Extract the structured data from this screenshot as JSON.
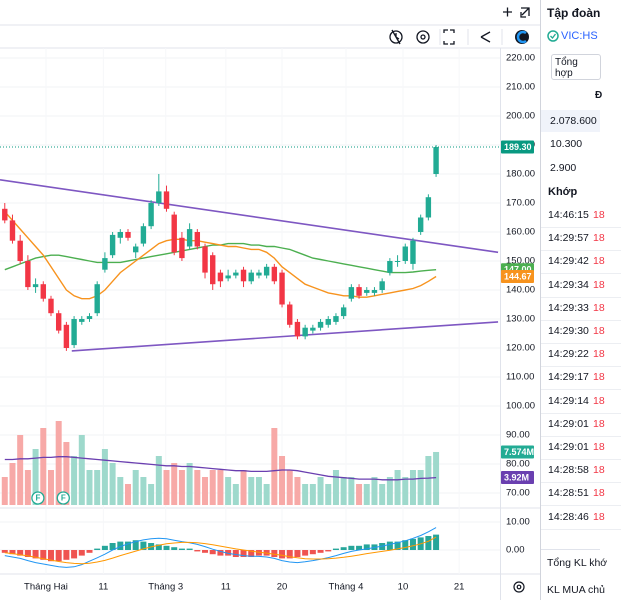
{
  "chart_data": {
    "type": "candlestick",
    "xlim": [
      -0.62,
      64.3
    ],
    "xticks": [
      {
        "value": 5.35,
        "label": "Tháng Hai"
      },
      {
        "value": 12.8,
        "label": "11"
      },
      {
        "value": 20.9,
        "label": "Tháng 3"
      },
      {
        "value": 28.7,
        "label": "11"
      },
      {
        "value": 36,
        "label": "20"
      },
      {
        "value": 44.3,
        "label": "Tháng 4"
      },
      {
        "value": 51.7,
        "label": "10"
      },
      {
        "value": 59,
        "label": "21"
      }
    ],
    "ylim": [
      65.86,
      223.45
    ],
    "yticks": [
      {
        "value": 220,
        "label": "220.00"
      },
      {
        "value": 210,
        "label": "210.00"
      },
      {
        "value": 200,
        "label": "200.00"
      },
      {
        "value": 190,
        "label": "190.00"
      },
      {
        "value": 180,
        "label": "180.00"
      },
      {
        "value": 170,
        "label": "170.00"
      },
      {
        "value": 160,
        "label": "160.00"
      },
      {
        "value": 150,
        "label": "150.00"
      },
      {
        "value": 140,
        "label": "140.00"
      },
      {
        "value": 130,
        "label": "130.00"
      },
      {
        "value": 120,
        "label": "120.00"
      },
      {
        "value": 110,
        "label": "110.00"
      },
      {
        "value": 100,
        "label": "100.00"
      },
      {
        "value": 90,
        "label": "90.00"
      },
      {
        "value": 80,
        "label": "80.00"
      },
      {
        "value": 70,
        "label": "70.00"
      }
    ],
    "grid": true,
    "up_color": "#22ab94",
    "down_color": "#f23645",
    "open": [
      168,
      164,
      157,
      150,
      141,
      142,
      137,
      132,
      128,
      121,
      129,
      130,
      132,
      147,
      152,
      158,
      160,
      153,
      156,
      162,
      170,
      174,
      166,
      158,
      155,
      160,
      155,
      152,
      146,
      144,
      145,
      147,
      143,
      145,
      145,
      148,
      146,
      135,
      129,
      124,
      126,
      127,
      128,
      129,
      131,
      137,
      141,
      139,
      139,
      140,
      146,
      150,
      150,
      149,
      160,
      165,
      180
    ],
    "high": [
      170,
      166,
      159,
      152,
      144,
      143,
      138,
      133,
      129,
      131,
      131,
      132,
      143,
      153,
      160,
      161,
      161,
      156,
      163,
      171,
      180,
      176,
      167,
      160,
      163,
      161,
      156,
      153,
      147,
      147,
      147,
      148,
      147,
      147,
      149,
      149,
      147,
      136,
      130,
      128,
      128,
      130,
      131,
      132,
      135,
      142,
      142,
      141,
      141,
      144,
      151,
      152,
      156,
      158,
      166,
      173,
      190
    ],
    "low": [
      163,
      156,
      149,
      140,
      139,
      136,
      131,
      125,
      119,
      120,
      128,
      129,
      131,
      146,
      151,
      156,
      157,
      151,
      155,
      161,
      169,
      167,
      152,
      150,
      154,
      154,
      144,
      140,
      141,
      143,
      144,
      141,
      142,
      144,
      144,
      142,
      134,
      127,
      123,
      123,
      125,
      126,
      127,
      128,
      130,
      136,
      137,
      138,
      138,
      139,
      145,
      148,
      149,
      147,
      159,
      164,
      179
    ],
    "close": [
      164,
      157,
      150,
      141,
      142,
      137,
      132,
      126,
      120,
      130,
      130,
      131,
      142,
      151,
      159,
      160,
      158,
      155,
      162,
      170,
      174,
      168,
      153,
      151,
      161,
      155,
      146,
      142,
      143,
      145,
      146,
      143,
      146,
      146,
      148,
      143,
      135,
      128,
      124,
      127,
      127,
      129,
      130,
      131,
      134,
      141,
      138,
      140,
      140,
      143,
      150,
      150,
      155,
      157,
      165,
      172,
      189.3
    ],
    "lines": [
      {
        "color": "#4caf50",
        "values": [
          147,
          148,
          149,
          150,
          151,
          151.5,
          152,
          152,
          151.5,
          151,
          150.5,
          150,
          149.5,
          149.5,
          149.5,
          149.5,
          150,
          150.5,
          151,
          151.5,
          152,
          152.5,
          153,
          153.5,
          154,
          154.5,
          155,
          155.5,
          155.5,
          156,
          156,
          156,
          155.5,
          155.5,
          155,
          155,
          154.5,
          154,
          153,
          152,
          151,
          150.5,
          150,
          149.5,
          149,
          148.5,
          148,
          147.5,
          147,
          146.5,
          146,
          146,
          146,
          146.2,
          146.5,
          146.8,
          147
        ]
      },
      {
        "color": "#f7931e",
        "values": [
          167,
          164,
          161,
          158,
          155,
          152,
          148,
          144,
          140,
          138,
          137,
          137,
          138,
          140,
          143,
          146,
          148,
          150,
          152,
          154,
          156,
          157,
          157.5,
          157.5,
          157,
          157,
          156.5,
          156,
          155.5,
          155,
          155,
          154.5,
          154,
          154,
          153,
          151,
          148,
          146,
          144,
          142,
          141,
          140,
          139,
          138.5,
          138,
          138,
          137.5,
          137.5,
          138,
          138.5,
          139,
          139.5,
          140,
          140.5,
          141.5,
          143,
          144.67
        ]
      }
    ],
    "trendlines": [
      {
        "color": "#7e57c2",
        "x": [
          -0.62,
          64.05
        ],
        "y": [
          178,
          153
        ]
      },
      {
        "color": "#7e57c2",
        "x": [
          8.7,
          64.05
        ],
        "y": [
          119,
          129
        ]
      }
    ],
    "events": [
      {
        "x": 4.3,
        "label": "F"
      },
      {
        "x": 7.6,
        "label": "F"
      }
    ],
    "volume": {
      "ylim": [
        0,
        10
      ],
      "up_color": "#9ed9cc",
      "down_color": "#f7a9a7",
      "values": [
        4,
        6,
        10,
        5,
        8,
        11,
        5,
        12,
        9,
        7,
        10,
        5,
        5,
        8,
        6,
        4,
        3,
        5,
        4,
        3,
        7,
        5,
        6,
        5,
        6,
        5,
        4,
        5,
        5,
        4,
        3,
        5,
        4,
        4,
        3,
        11,
        7,
        5,
        4,
        3,
        3,
        4,
        3,
        5,
        4,
        4,
        3,
        3,
        4,
        3,
        4,
        5,
        4,
        5,
        5,
        7,
        7.574
      ],
      "ma": {
        "color": "#6a3fb0",
        "values": [
          6.5,
          6.5,
          6.6,
          6.6,
          6.7,
          6.8,
          6.8,
          6.9,
          6.9,
          6.8,
          6.7,
          6.6,
          6.5,
          6.4,
          6.3,
          6.2,
          6.1,
          6,
          5.9,
          5.8,
          5.7,
          5.6,
          5.6,
          5.5,
          5.5,
          5.4,
          5.3,
          5.2,
          5.1,
          5,
          4.9,
          4.9,
          4.8,
          4.8,
          4.8,
          4.9,
          5,
          5,
          4.9,
          4.7,
          4.5,
          4.3,
          4.1,
          4,
          3.9,
          3.8,
          3.7,
          3.7,
          3.7,
          3.6,
          3.6,
          3.6,
          3.7,
          3.7,
          3.8,
          3.85,
          3.92
        ]
      }
    },
    "badges": [
      {
        "pane": "price",
        "value": 189.3,
        "label": "189.30",
        "color": "#089981"
      },
      {
        "pane": "price",
        "value": 147,
        "label": "147.00",
        "color": "#4caf50"
      },
      {
        "pane": "price",
        "value": 144.67,
        "label": "144.67",
        "color": "#f7931e"
      },
      {
        "pane": "volume",
        "value": 7.574,
        "label": "7.574M",
        "color": "#22ab94"
      },
      {
        "pane": "volume",
        "value": 3.92,
        "label": "3.92M",
        "color": "#6a3fb0"
      }
    ],
    "macd": {
      "ylim": [
        -7.14,
        14.29
      ],
      "yticks": [
        {
          "value": 10,
          "label": "10.00"
        },
        {
          "value": 0,
          "label": "0.00"
        }
      ],
      "up_color": "#26a69a",
      "down_color": "#ef5350",
      "histogram": [
        -1,
        -1.5,
        -2,
        -2.5,
        -3,
        -3.5,
        -4,
        -4,
        -3.5,
        -3,
        -2,
        -1,
        0.5,
        1.5,
        2.5,
        3,
        3,
        3.5,
        3,
        2.5,
        2,
        1.5,
        1,
        0.5,
        0.5,
        -0.5,
        -1,
        -1.5,
        -2,
        -2,
        -2.5,
        -2.5,
        -2.5,
        -2,
        -2,
        -2.5,
        -3,
        -3,
        -2.5,
        -2,
        -1.5,
        -1,
        -0.5,
        0.5,
        1,
        1.5,
        1.5,
        2,
        2,
        2.5,
        3,
        3,
        3.5,
        4,
        4.5,
        5,
        5.5
      ],
      "macd_line": {
        "color": "#2196f3",
        "values": [
          -2,
          -2.5,
          -3,
          -3.8,
          -4.5,
          -5,
          -5.5,
          -6,
          -6.2,
          -6,
          -5.2,
          -4,
          -2.8,
          -1.5,
          0,
          1.2,
          2.2,
          3,
          3.6,
          4,
          4.2,
          4,
          3.5,
          3,
          2.6,
          2,
          1.2,
          0.3,
          -0.5,
          -1.2,
          -1.6,
          -2,
          -2.2,
          -2.3,
          -2.5,
          -3,
          -3.8,
          -4.3,
          -4.5,
          -4.2,
          -3.8,
          -3.3,
          -2.7,
          -2,
          -1.2,
          -0.5,
          0,
          0.4,
          0.9,
          1.4,
          2,
          2.6,
          3.3,
          4.2,
          5.2,
          6.5,
          8
        ]
      },
      "signal_line": {
        "color": "#ff9800",
        "values": [
          -1,
          -1.3,
          -1.7,
          -2.1,
          -2.6,
          -3.1,
          -3.6,
          -4.1,
          -4.5,
          -4.8,
          -4.9,
          -4.7,
          -4.3,
          -3.7,
          -2.9,
          -2,
          -1.2,
          -0.4,
          0.4,
          1.1,
          1.7,
          2.2,
          2.5,
          2.7,
          2.7,
          2.6,
          2.3,
          1.9,
          1.4,
          0.9,
          0.4,
          0,
          -0.4,
          -0.8,
          -1.1,
          -1.5,
          -1.9,
          -2.4,
          -2.8,
          -3.1,
          -3.2,
          -3.2,
          -3.1,
          -2.9,
          -2.6,
          -2.2,
          -1.8,
          -1.3,
          -0.9,
          -0.5,
          -0.1,
          0.4,
          0.9,
          1.5,
          2.2,
          3.1,
          4.6
        ]
      }
    }
  },
  "side_panel": {
    "title": "Tập đoàn",
    "symbol": "VIC:HS",
    "tab": "Tổng hợp",
    "header_fragment": "Đ",
    "stats": [
      "2.078.600",
      "10.300",
      "2.900"
    ],
    "trades_title": "Khớp",
    "trades": [
      {
        "time": "14:46:15",
        "price": "18"
      },
      {
        "time": "14:29:57",
        "price": "18"
      },
      {
        "time": "14:29:42",
        "price": "18"
      },
      {
        "time": "14:29:34",
        "price": "18"
      },
      {
        "time": "14:29:33",
        "price": "18"
      },
      {
        "time": "14:29:30",
        "price": "18"
      },
      {
        "time": "14:29:22",
        "price": "18"
      },
      {
        "time": "14:29:17",
        "price": "18"
      },
      {
        "time": "14:29:14",
        "price": "18"
      },
      {
        "time": "14:29:01",
        "price": "18"
      },
      {
        "time": "14:29:01",
        "price": "18"
      },
      {
        "time": "14:28:58",
        "price": "18"
      },
      {
        "time": "14:28:51",
        "price": "18"
      },
      {
        "time": "14:28:46",
        "price": "18"
      }
    ],
    "footer": [
      "Tổng KL khớ",
      "KL MUA chủ"
    ]
  }
}
